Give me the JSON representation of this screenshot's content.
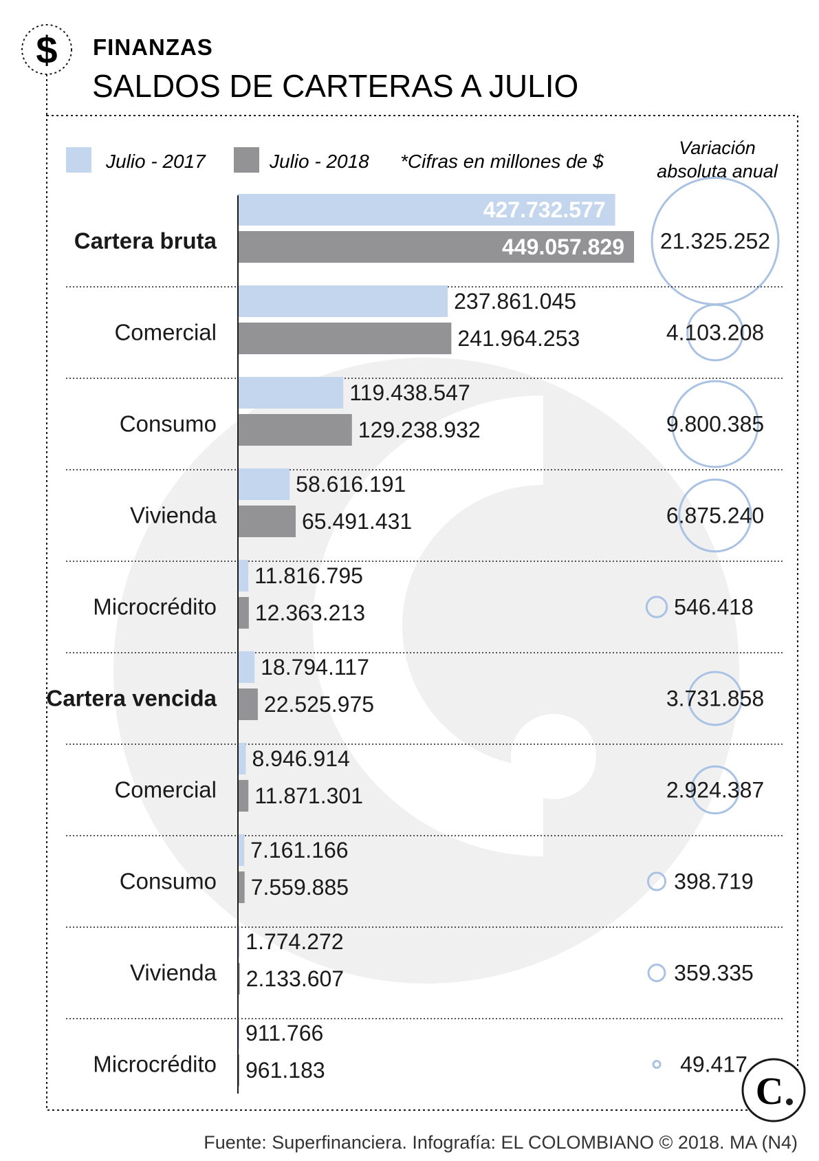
{
  "header": {
    "section": "FINANZAS",
    "title": "SALDOS DE CARTERAS A JULIO",
    "icon": "dollar-sign-icon"
  },
  "legend": {
    "series_2017": "Julio - 2017",
    "series_2018": "Julio - 2018",
    "note": "*Cifras en millones de $",
    "variation_line1": "Variación",
    "variation_line2": "absoluta anual"
  },
  "source": "Fuente: Superfinanciera. Infografía: EL COLOMBIANO © 2018. MA (N4)",
  "colors": {
    "series_2017": "#c4d5ee",
    "series_2018": "#939396",
    "circle": "#a9c2e4",
    "watermark": "#f0f0f0"
  },
  "chart_data": {
    "type": "bar",
    "orientation": "horizontal",
    "categories": [
      "Cartera bruta",
      "Comercial",
      "Consumo",
      "Vivienda",
      "Microcrédito",
      "Cartera vencida",
      "Comercial",
      "Consumo",
      "Vivienda",
      "Microcrédito"
    ],
    "bold_categories": [
      "Cartera bruta",
      "Cartera vencida"
    ],
    "series": [
      {
        "name": "Julio - 2017",
        "values": [
          427732577,
          237861045,
          119438547,
          58616191,
          11816795,
          18794117,
          8946914,
          7161166,
          1774272,
          911766
        ],
        "labels": [
          "427.732.577",
          "237.861.045",
          "119.438.547",
          "58.616.191",
          "11.816.795",
          "18.794.117",
          "8.946.914",
          "7.161.166",
          "1.774.272",
          "911.766"
        ]
      },
      {
        "name": "Julio - 2018",
        "values": [
          449057829,
          241964253,
          129238932,
          65491431,
          12363213,
          22525975,
          11871301,
          7559885,
          2133607,
          961183
        ],
        "labels": [
          "449.057.829",
          "241.964.253",
          "129.238.932",
          "65.491.431",
          "12.363.213",
          "22.525.975",
          "11.871.301",
          "7.559.885",
          "2.133.607",
          "961.183"
        ]
      }
    ],
    "variation": {
      "values": [
        21325252,
        4103208,
        9800385,
        6875240,
        546418,
        3731858,
        2924387,
        398719,
        359335,
        49417
      ],
      "labels": [
        "21.325.252",
        "4.103.208",
        "9.800.385",
        "6.875.240",
        "546.418",
        "3.731.858",
        "2.924.387",
        "398.719",
        "359.335",
        "49.417"
      ]
    }
  }
}
